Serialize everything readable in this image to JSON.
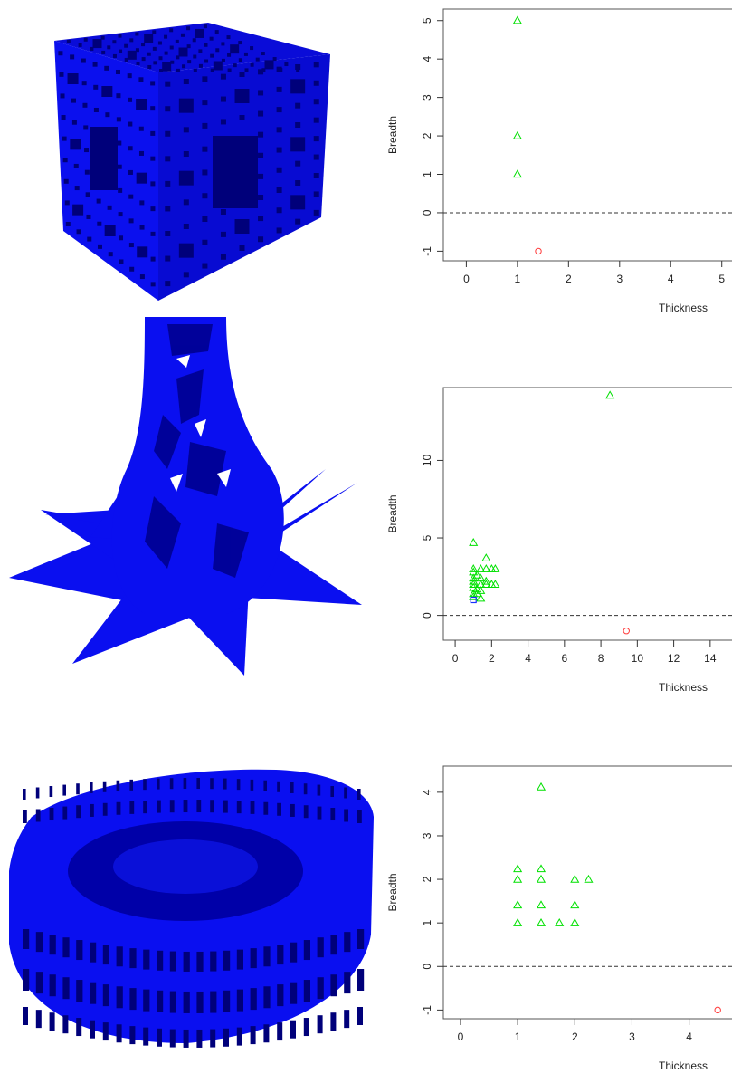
{
  "colors": {
    "model_blue": "#0a0ff0",
    "model_dark": "#00007a",
    "triangle_green": "#00e000",
    "circle_red": "#ff3b3b",
    "square_blue": "#1a2fff",
    "axis": "#333333"
  },
  "models": [
    {
      "name": "menger-sponge-cube"
    },
    {
      "name": "lotus-vase"
    },
    {
      "name": "colosseum"
    }
  ],
  "chart_data": [
    {
      "type": "scatter",
      "xlabel": "Thickness",
      "ylabel": "Breadth",
      "xlim": [
        -0.45,
        5.2
      ],
      "ylim": [
        -1.25,
        5.3
      ],
      "xticks": [
        "0",
        "1",
        "2",
        "3",
        "4",
        "5"
      ],
      "yticks": [
        "-1",
        "0",
        "1",
        "2",
        "3",
        "4",
        "5"
      ],
      "reference_line_y": 0,
      "points": [
        {
          "x": 1.0,
          "y": 5.0,
          "shape": "triangle"
        },
        {
          "x": 1.0,
          "y": 2.0,
          "shape": "triangle"
        },
        {
          "x": 1.0,
          "y": 1.0,
          "shape": "triangle"
        },
        {
          "x": 1.41,
          "y": -1.0,
          "shape": "circle"
        }
      ]
    },
    {
      "type": "scatter",
      "xlabel": "Thickness",
      "ylabel": "Breadth",
      "xlim": [
        -0.65,
        15.2
      ],
      "ylim": [
        -1.6,
        14.7
      ],
      "xticks": [
        "0",
        "2",
        "4",
        "6",
        "8",
        "10",
        "12",
        "14"
      ],
      "yticks": [
        "0",
        "5",
        "10"
      ],
      "reference_line_y": 0,
      "points": [
        {
          "x": 8.5,
          "y": 14.2,
          "shape": "triangle"
        },
        {
          "x": 1.0,
          "y": 4.7,
          "shape": "triangle"
        },
        {
          "x": 1.7,
          "y": 3.7,
          "shape": "triangle"
        },
        {
          "x": 1.0,
          "y": 3.0,
          "shape": "triangle"
        },
        {
          "x": 1.4,
          "y": 3.0,
          "shape": "triangle"
        },
        {
          "x": 1.7,
          "y": 3.0,
          "shape": "triangle"
        },
        {
          "x": 2.0,
          "y": 3.0,
          "shape": "triangle"
        },
        {
          "x": 2.2,
          "y": 3.0,
          "shape": "triangle"
        },
        {
          "x": 1.0,
          "y": 2.8,
          "shape": "triangle"
        },
        {
          "x": 1.2,
          "y": 2.6,
          "shape": "triangle"
        },
        {
          "x": 1.4,
          "y": 2.4,
          "shape": "triangle"
        },
        {
          "x": 1.0,
          "y": 2.4,
          "shape": "triangle"
        },
        {
          "x": 1.7,
          "y": 2.2,
          "shape": "triangle"
        },
        {
          "x": 1.0,
          "y": 2.2,
          "shape": "triangle"
        },
        {
          "x": 1.4,
          "y": 2.0,
          "shape": "triangle"
        },
        {
          "x": 1.0,
          "y": 2.0,
          "shape": "triangle"
        },
        {
          "x": 1.7,
          "y": 2.0,
          "shape": "triangle"
        },
        {
          "x": 2.0,
          "y": 2.0,
          "shape": "triangle"
        },
        {
          "x": 2.2,
          "y": 2.0,
          "shape": "triangle"
        },
        {
          "x": 1.0,
          "y": 1.8,
          "shape": "triangle"
        },
        {
          "x": 1.2,
          "y": 1.7,
          "shape": "triangle"
        },
        {
          "x": 1.4,
          "y": 1.6,
          "shape": "triangle"
        },
        {
          "x": 1.0,
          "y": 1.4,
          "shape": "triangle"
        },
        {
          "x": 1.2,
          "y": 1.4,
          "shape": "triangle"
        },
        {
          "x": 1.0,
          "y": 1.2,
          "shape": "triangle"
        },
        {
          "x": 1.4,
          "y": 1.1,
          "shape": "triangle"
        },
        {
          "x": 1.0,
          "y": 1.0,
          "shape": "square"
        },
        {
          "x": 9.4,
          "y": -1.0,
          "shape": "circle"
        }
      ]
    },
    {
      "type": "scatter",
      "xlabel": "Thickness",
      "ylabel": "Breadth",
      "xlim": [
        -0.3,
        4.75
      ],
      "ylim": [
        -1.2,
        4.6
      ],
      "xticks": [
        "0",
        "1",
        "2",
        "3",
        "4"
      ],
      "yticks": [
        "-1",
        "0",
        "1",
        "2",
        "3",
        "4"
      ],
      "reference_line_y": 0,
      "points": [
        {
          "x": 1.41,
          "y": 4.12,
          "shape": "triangle"
        },
        {
          "x": 1.0,
          "y": 2.24,
          "shape": "triangle"
        },
        {
          "x": 1.41,
          "y": 2.24,
          "shape": "triangle"
        },
        {
          "x": 1.0,
          "y": 2.0,
          "shape": "triangle"
        },
        {
          "x": 1.41,
          "y": 2.0,
          "shape": "triangle"
        },
        {
          "x": 2.0,
          "y": 2.0,
          "shape": "triangle"
        },
        {
          "x": 2.24,
          "y": 2.0,
          "shape": "triangle"
        },
        {
          "x": 1.0,
          "y": 1.41,
          "shape": "triangle"
        },
        {
          "x": 1.41,
          "y": 1.41,
          "shape": "triangle"
        },
        {
          "x": 2.0,
          "y": 1.41,
          "shape": "triangle"
        },
        {
          "x": 1.0,
          "y": 1.0,
          "shape": "triangle"
        },
        {
          "x": 1.41,
          "y": 1.0,
          "shape": "triangle"
        },
        {
          "x": 1.73,
          "y": 1.0,
          "shape": "triangle"
        },
        {
          "x": 2.0,
          "y": 1.0,
          "shape": "triangle"
        },
        {
          "x": 4.5,
          "y": -1.0,
          "shape": "circle"
        }
      ]
    }
  ]
}
